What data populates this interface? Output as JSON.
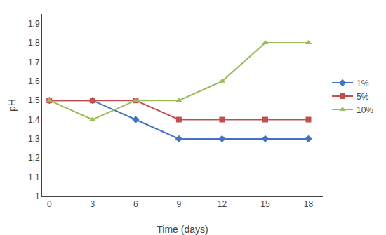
{
  "chart_data": {
    "type": "line",
    "x": [
      0,
      3,
      6,
      9,
      12,
      15,
      18
    ],
    "series": [
      {
        "name": "1%",
        "color": "#4472C4",
        "marker": "diamond",
        "values": [
          1.5,
          1.5,
          1.4,
          1.3,
          1.3,
          1.3,
          1.3
        ]
      },
      {
        "name": "5%",
        "color": "#C0504D",
        "marker": "square",
        "values": [
          1.5,
          1.5,
          1.5,
          1.4,
          1.4,
          1.4,
          1.4
        ]
      },
      {
        "name": "10%",
        "color": "#9BBB59",
        "marker": "triangle-up",
        "values": [
          1.5,
          1.4,
          1.5,
          1.5,
          1.6,
          1.8,
          1.8
        ]
      }
    ],
    "x_label": "Time (days)",
    "y_label": "pH",
    "xlim": [
      -0.5,
      19
    ],
    "xticks": [
      0,
      3,
      6,
      9,
      12,
      15,
      18
    ],
    "ylim": [
      1.0,
      1.95
    ],
    "yticks": [
      1,
      1.1,
      1.2,
      1.3,
      1.4,
      1.5,
      1.6,
      1.7,
      1.8,
      1.9
    ],
    "grid": false,
    "legend": "right"
  }
}
